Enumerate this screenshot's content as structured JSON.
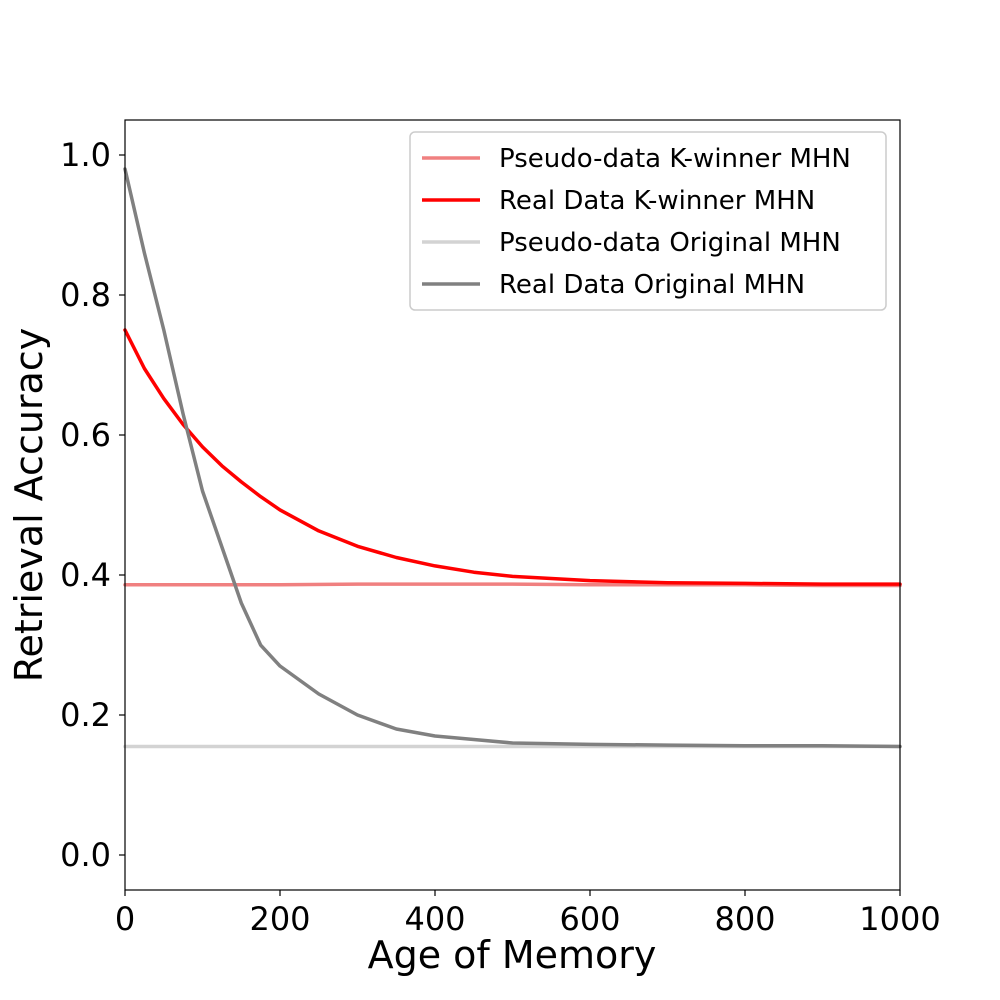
{
  "chart_data": {
    "type": "line",
    "xlabel": "Age of Memory",
    "ylabel": "Retrieval Accuracy",
    "xlim": [
      0,
      1000
    ],
    "ylim": [
      -0.05,
      1.05
    ],
    "xticks": [
      0,
      200,
      400,
      600,
      800,
      1000
    ],
    "yticks": [
      0.0,
      0.2,
      0.4,
      0.6,
      0.8,
      1.0
    ],
    "xtick_labels": [
      "0",
      "200",
      "400",
      "600",
      "800",
      "1000"
    ],
    "ytick_labels": [
      "0.0",
      "0.2",
      "0.4",
      "0.6",
      "0.8",
      "1.0"
    ],
    "grid": false,
    "legend_position": "top-right",
    "series": [
      {
        "name": "Pseudo-data K-winner MHN",
        "color": "#f08080",
        "x": [
          0,
          100,
          200,
          300,
          400,
          500,
          600,
          700,
          800,
          900,
          1000
        ],
        "y": [
          0.386,
          0.386,
          0.386,
          0.387,
          0.387,
          0.387,
          0.386,
          0.386,
          0.386,
          0.385,
          0.385
        ]
      },
      {
        "name": "Real Data K-winner MHN",
        "color": "#ff0000",
        "x": [
          0,
          25,
          50,
          75,
          100,
          125,
          150,
          175,
          200,
          250,
          300,
          350,
          400,
          450,
          500,
          600,
          700,
          800,
          900,
          1000
        ],
        "y": [
          0.75,
          0.695,
          0.652,
          0.615,
          0.583,
          0.556,
          0.533,
          0.512,
          0.493,
          0.463,
          0.441,
          0.425,
          0.413,
          0.404,
          0.398,
          0.392,
          0.389,
          0.388,
          0.387,
          0.387
        ]
      },
      {
        "name": "Pseudo-data Original MHN",
        "color": "#d3d3d3",
        "x": [
          0,
          100,
          200,
          300,
          400,
          500,
          600,
          700,
          800,
          900,
          1000
        ],
        "y": [
          0.155,
          0.155,
          0.155,
          0.155,
          0.155,
          0.155,
          0.155,
          0.155,
          0.155,
          0.155,
          0.155
        ]
      },
      {
        "name": "Real Data Original MHN",
        "color": "#808080",
        "x": [
          0,
          25,
          50,
          75,
          100,
          125,
          150,
          175,
          200,
          250,
          300,
          350,
          400,
          450,
          500,
          600,
          700,
          800,
          900,
          1000
        ],
        "y": [
          0.98,
          0.86,
          0.75,
          0.63,
          0.52,
          0.44,
          0.36,
          0.3,
          0.27,
          0.23,
          0.2,
          0.18,
          0.17,
          0.165,
          0.16,
          0.158,
          0.157,
          0.156,
          0.156,
          0.155
        ]
      }
    ]
  }
}
